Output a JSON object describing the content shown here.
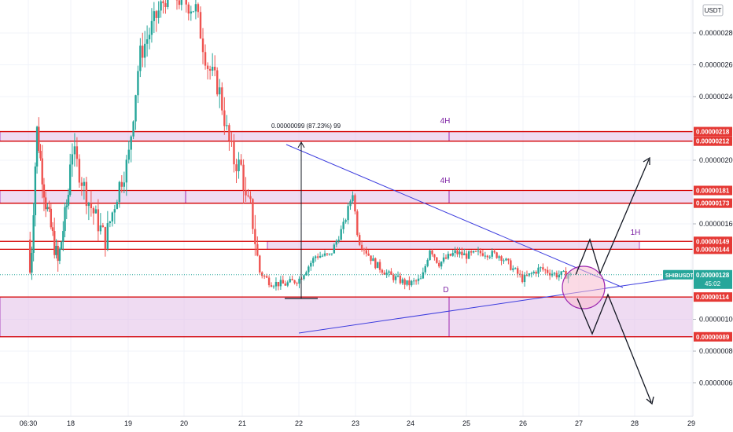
{
  "chart_data": {
    "type": "candlestick",
    "symbol": "SHIBUSDT",
    "currency": "USDT",
    "last_price": 1.28e-06,
    "countdown": "45:02",
    "x_labels": [
      "06:30",
      "18",
      "19",
      "20",
      "21",
      "22",
      "23",
      "24",
      "25",
      "26",
      "27",
      "28",
      "29"
    ],
    "y_ticks": [
      {
        "value": 2.8e-06,
        "label": "0.00000280"
      },
      {
        "value": 2.6e-06,
        "label": "0.00000260"
      },
      {
        "value": 2.4e-06,
        "label": "0.00000240"
      },
      {
        "value": 2e-06,
        "label": "0.00000200"
      },
      {
        "value": 1.6e-06,
        "label": "0.00000160"
      },
      {
        "value": 1e-06,
        "label": "0.00000100"
      },
      {
        "value": 8e-07,
        "label": "0.00000080"
      },
      {
        "value": 6e-07,
        "label": "0.00000060"
      }
    ],
    "price_levels": [
      {
        "value": 2.18e-06,
        "label": "0.00000218"
      },
      {
        "value": 2.12e-06,
        "label": "0.00000212"
      },
      {
        "value": 1.81e-06,
        "label": "0.00000181"
      },
      {
        "value": 1.73e-06,
        "label": "0.00000173"
      },
      {
        "value": 1.49e-06,
        "label": "0.00000149"
      },
      {
        "value": 1.44e-06,
        "label": "0.00000144"
      },
      {
        "value": 1.14e-06,
        "label": "0.00000114"
      },
      {
        "value": 8.9e-07,
        "label": "0.00000089"
      }
    ],
    "zones": [
      {
        "label": "4H",
        "top": 2.18e-06,
        "bottom": 2.12e-06
      },
      {
        "label": "4H",
        "top": 1.81e-06,
        "bottom": 1.73e-06
      },
      {
        "label": "1H",
        "top": 1.49e-06,
        "bottom": 1.44e-06
      },
      {
        "label": "",
        "top": 1.14e-06,
        "bottom": 8.9e-07
      }
    ],
    "annotations": {
      "measure": "0.00000099 (87.23%) 99",
      "point_label": "D"
    },
    "colors": {
      "up": "#26a69a",
      "down": "#ef5350",
      "zone_fill": "#e1bee7",
      "zone_line": "#d50000",
      "trendline": "#3d3dde",
      "badge_teal": "#26a69a",
      "badge_red": "#e53935",
      "label_purple": "#7b1fa2"
    }
  }
}
